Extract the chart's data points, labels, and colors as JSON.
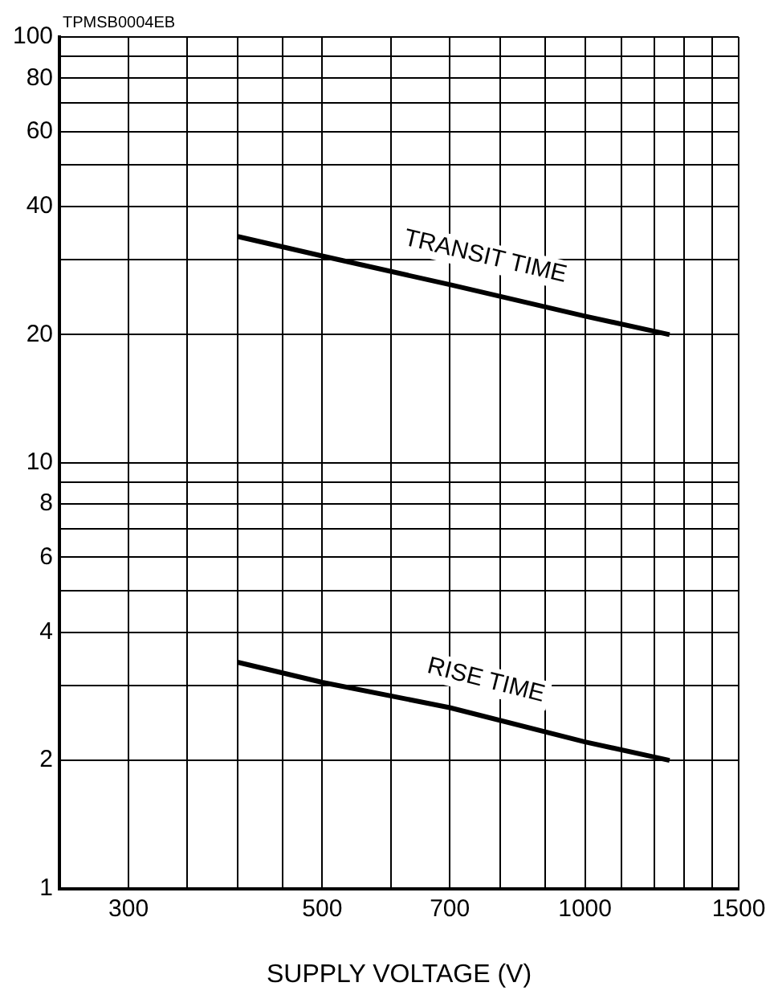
{
  "chart_data": {
    "type": "line",
    "xlabel": "SUPPLY VOLTAGE (V)",
    "annotations": [
      "TPMSB0004EB"
    ],
    "log": "xy",
    "grid": true,
    "legend": false,
    "marker": "none",
    "line_style": "solid",
    "xlim": [
      250,
      1500
    ],
    "ylim": [
      1,
      100
    ],
    "xticks": [
      300,
      {
        "value": 350,
        "label": null
      },
      {
        "value": 400,
        "label": null
      },
      {
        "value": 450,
        "label": null
      },
      500,
      {
        "value": 600,
        "label": null
      },
      700,
      {
        "value": 800,
        "label": null
      },
      {
        "value": 900,
        "label": null
      },
      1000,
      {
        "value": 1100,
        "label": null
      },
      {
        "value": 1200,
        "label": null
      },
      {
        "value": 1300,
        "label": null
      },
      {
        "value": 1400,
        "label": null
      },
      1500
    ],
    "yticks": [
      1,
      2,
      {
        "value": 3,
        "label": null
      },
      4,
      {
        "value": 5,
        "label": null
      },
      6,
      {
        "value": 7,
        "label": null
      },
      8,
      {
        "value": 9,
        "label": null
      },
      10,
      20,
      {
        "value": 30,
        "label": null
      },
      40,
      {
        "value": 50,
        "label": null
      },
      60,
      {
        "value": 70,
        "label": null
      },
      80,
      {
        "value": 90,
        "label": null
      },
      100
    ],
    "series": [
      {
        "name": "TRANSIT TIME",
        "color": "#000000",
        "x": [
          400,
          500,
          700,
          1000,
          1250
        ],
        "values": [
          34,
          30.6,
          26.2,
          22.1,
          20
        ]
      },
      {
        "name": "RISE TIME",
        "color": "#000000",
        "x": [
          400,
          500,
          700,
          1000,
          1250
        ],
        "values": [
          3.4,
          3.05,
          2.66,
          2.21,
          2
        ]
      }
    ]
  }
}
